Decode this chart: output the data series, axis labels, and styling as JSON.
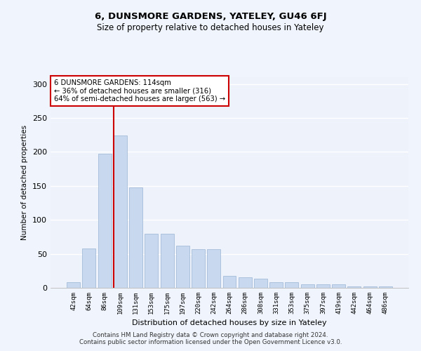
{
  "title": "6, DUNSMORE GARDENS, YATELEY, GU46 6FJ",
  "subtitle": "Size of property relative to detached houses in Yateley",
  "xlabel": "Distribution of detached houses by size in Yateley",
  "ylabel": "Number of detached properties",
  "bar_color": "#c8d8ee",
  "bar_edge_color": "#9ab4d2",
  "background_color": "#eef2fa",
  "grid_color": "#ffffff",
  "categories": [
    "42sqm",
    "64sqm",
    "86sqm",
    "109sqm",
    "131sqm",
    "153sqm",
    "175sqm",
    "197sqm",
    "220sqm",
    "242sqm",
    "264sqm",
    "286sqm",
    "308sqm",
    "331sqm",
    "353sqm",
    "375sqm",
    "397sqm",
    "419sqm",
    "442sqm",
    "464sqm",
    "486sqm"
  ],
  "values": [
    8,
    58,
    197,
    224,
    148,
    80,
    80,
    62,
    57,
    57,
    18,
    15,
    13,
    8,
    8,
    5,
    5,
    5,
    2,
    2,
    2
  ],
  "ylim": [
    0,
    310
  ],
  "yticks": [
    0,
    50,
    100,
    150,
    200,
    250,
    300
  ],
  "vline_pos": 2.575,
  "vline_color": "#cc0000",
  "property_label": "6 DUNSMORE GARDENS: 114sqm",
  "annotation_line1": "← 36% of detached houses are smaller (316)",
  "annotation_line2": "64% of semi-detached houses are larger (563) →",
  "annotation_box_color": "#ffffff",
  "annotation_box_edge": "#cc0000",
  "footer_line1": "Contains HM Land Registry data © Crown copyright and database right 2024.",
  "footer_line2": "Contains public sector information licensed under the Open Government Licence v3.0."
}
